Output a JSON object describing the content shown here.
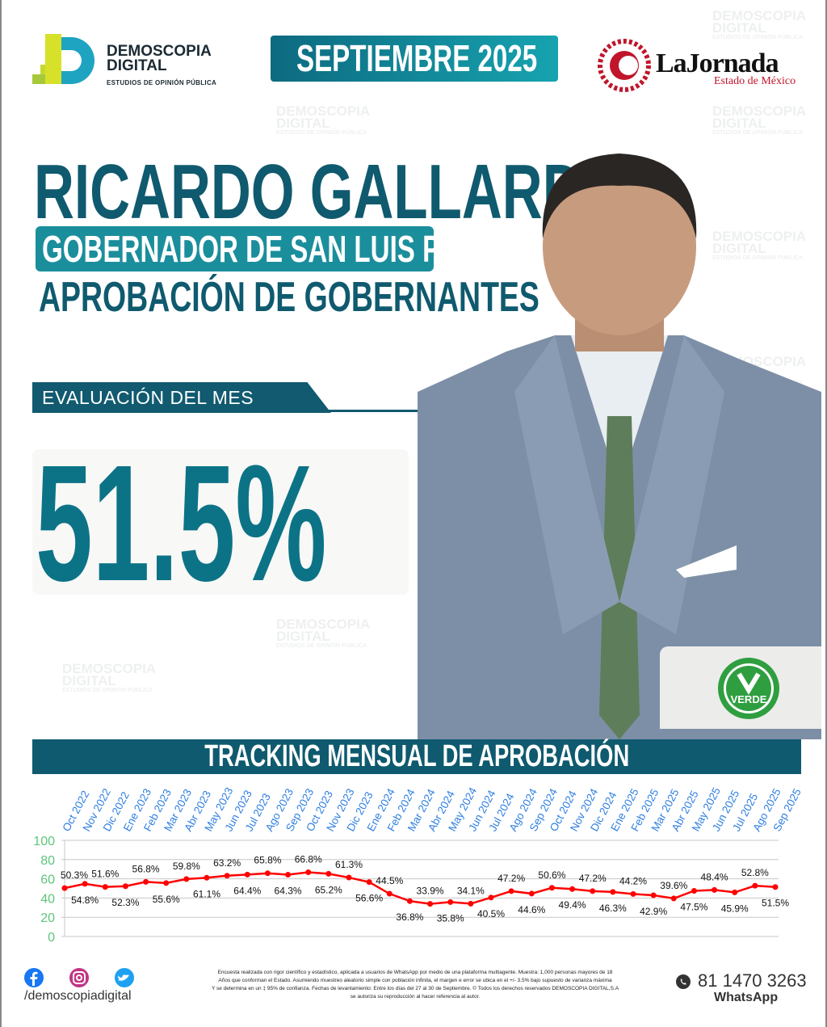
{
  "header": {
    "brand_name": "DEMOSCOPIA",
    "brand_name2": "DIGITAL",
    "brand_tagline": "ESTUDIOS DE OPINIÓN PÚBLICA",
    "month": "SEPTIEMBRE 2025",
    "partner_title": "LaJornada",
    "partner_subtitle": "Estado de México"
  },
  "headline": {
    "name": "RICARDO GALLARDO",
    "role": "GOBERNADOR DE SAN LUIS POTOSÍ",
    "subtitle": "APROBACIÓN DE GOBERNANTES"
  },
  "evaluation": {
    "label": "EVALUACIÓN DEL MES",
    "value": "51.5%"
  },
  "party": {
    "label": "VERDE"
  },
  "watermark": {
    "line1": "DEMOSCOPIA",
    "line2": "DIGITAL",
    "line3": "ESTUDIOS DE OPINIÓN PÚBLICA"
  },
  "chart_data": {
    "type": "line",
    "title": "TRACKING MENSUAL DE APROBACIÓN",
    "categories": [
      "Oct 2022",
      "Nov 2022",
      "Dic 2022",
      "Ene 2023",
      "Feb 2023",
      "Mar 2023",
      "Abr 2023",
      "May 2023",
      "Jun 2023",
      "Jul 2023",
      "Ago 2023",
      "Sep 2023",
      "Oct 2023",
      "Nov 2023",
      "Dic 2023",
      "Ene 2024",
      "Feb 2024",
      "Mar 2024",
      "Abr 2024",
      "May 2024",
      "Jun 2024",
      "Jul 2024",
      "Ago 2024",
      "Sep 2024",
      "Oct 2024",
      "Nov 2024",
      "Dic 2024",
      "Ene 2025",
      "Feb 2025",
      "Mar 2025",
      "Abr 2025",
      "May 2025",
      "Jun 2025",
      "Jul 2025",
      "Ago 2025",
      "Sep 2025"
    ],
    "values": [
      50.3,
      54.8,
      51.6,
      52.3,
      56.8,
      55.6,
      59.8,
      61.1,
      63.2,
      64.4,
      65.8,
      64.3,
      66.8,
      65.2,
      61.3,
      56.6,
      44.5,
      36.8,
      33.9,
      35.8,
      34.1,
      40.5,
      47.2,
      44.6,
      50.6,
      49.4,
      47.2,
      46.3,
      44.2,
      42.9,
      39.6,
      47.5,
      48.4,
      45.9,
      52.8,
      51.5
    ],
    "ylim": [
      0,
      100
    ],
    "yticks": [
      0,
      20,
      40,
      60,
      80,
      100
    ],
    "grid": true,
    "line_color": "#ff0000",
    "tick_color_x": "#2f7fe0",
    "tick_color_y": "#5cc77a"
  },
  "footer": {
    "social_handle": "/demoscopiadigital",
    "note": [
      "Encuesta realizada con rigor científico y estadístico, aplicada a usuarios de WhatsApp por medio de una plataforma multiagente. Muestra: 1,000 personas mayores de 18",
      "Años que conforman el Estado. Asumiendo muestreo aleatorio simple con población infinita, el margen e error se ubica en el +/- 3.5% bajo supuesto de varianza máxima",
      "Y se determina en un ‡ 95% de confianza. Fechas de levantamiento: Entre los días del 27 al 30 de Septiembre. © Todos los derechos reservados DEMOSCOPIA DIGITAL,S.A",
      "se autoriza su reproducción al hacer referencia al autor."
    ],
    "phone": "81 1470 3263",
    "phone_label": "WhatsApp"
  },
  "colors": {
    "primary": "#0f5a6e",
    "accent": "#1b8e9c",
    "big_number": "#0c7387"
  }
}
